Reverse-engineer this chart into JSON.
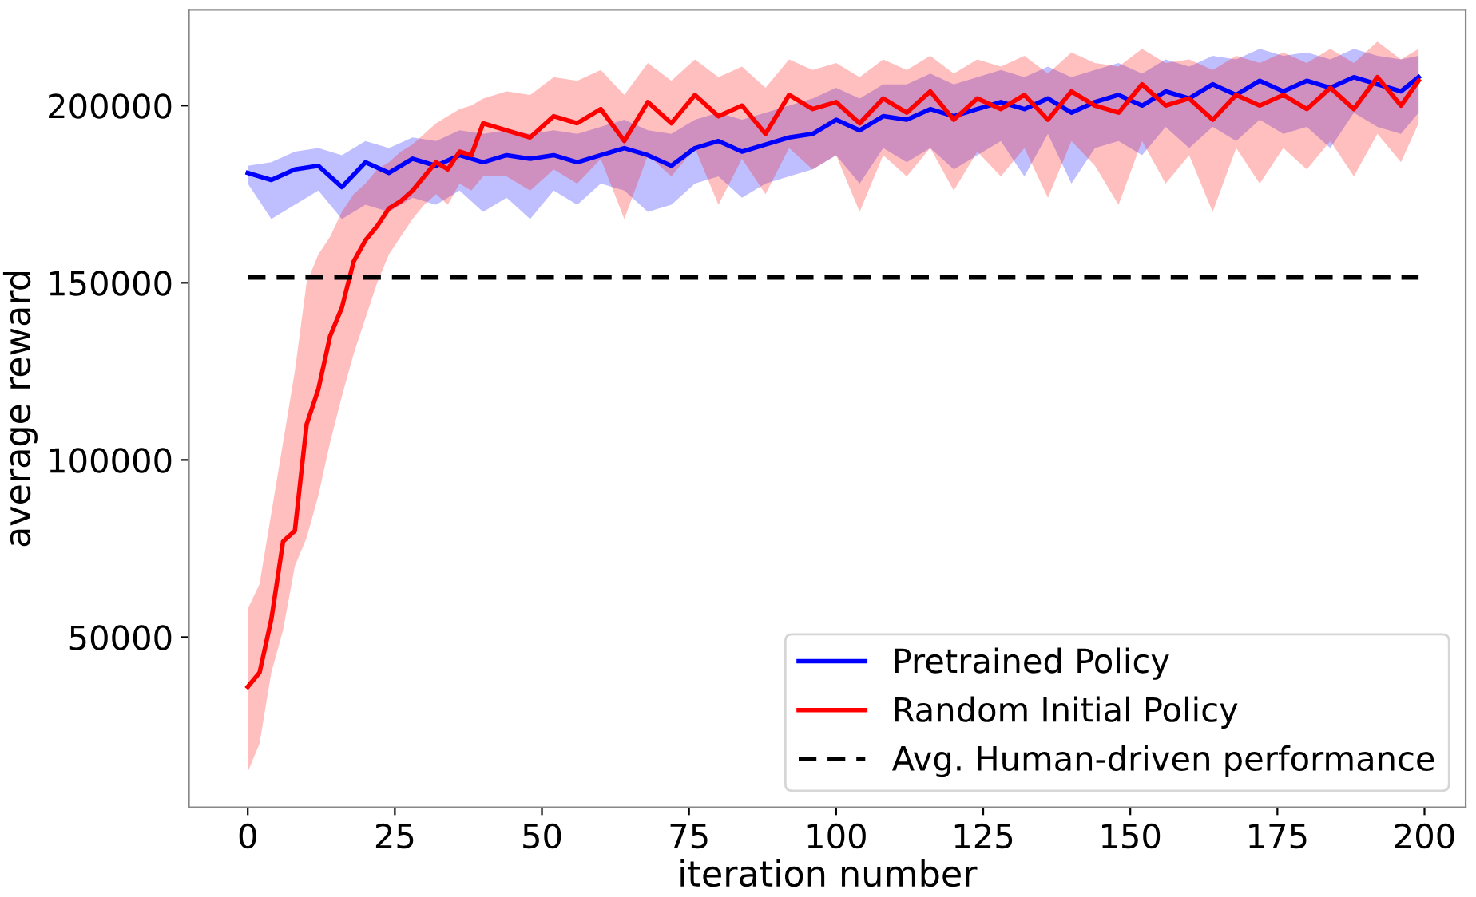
{
  "chart_data": {
    "type": "line",
    "xlabel": "iteration number",
    "ylabel": "average reward",
    "xlim": [
      -10,
      207
    ],
    "xticks": [
      0,
      25,
      50,
      75,
      100,
      125,
      150,
      175,
      200
    ],
    "ylim": [
      2000,
      227000
    ],
    "yticks": [
      50000,
      100000,
      150000,
      200000
    ],
    "grid": false,
    "legend": "bottom right",
    "marker": "none",
    "series": [
      {
        "name": "Pretrained Policy",
        "color": "#0000ff",
        "line_style": "solid",
        "x": [
          0,
          4,
          8,
          12,
          16,
          20,
          24,
          28,
          32,
          36,
          40,
          44,
          48,
          52,
          56,
          60,
          64,
          68,
          72,
          76,
          80,
          84,
          88,
          92,
          96,
          100,
          104,
          108,
          112,
          116,
          120,
          124,
          128,
          132,
          136,
          140,
          144,
          148,
          152,
          156,
          160,
          164,
          168,
          172,
          176,
          180,
          184,
          188,
          192,
          196,
          199
        ],
        "values": [
          181000,
          179000,
          182000,
          183000,
          177000,
          184000,
          181000,
          185000,
          183000,
          186000,
          184000,
          186000,
          185000,
          186000,
          184000,
          186000,
          188000,
          186000,
          183000,
          188000,
          190000,
          187000,
          189000,
          191000,
          192000,
          196000,
          193000,
          197000,
          196000,
          199000,
          197000,
          199000,
          201000,
          199000,
          202000,
          198000,
          201000,
          203000,
          200000,
          204000,
          202000,
          206000,
          203000,
          207000,
          204000,
          207000,
          205000,
          208000,
          206000,
          204000,
          208000
        ],
        "lower": [
          178000,
          168000,
          172000,
          176000,
          168000,
          172000,
          170000,
          174000,
          172000,
          176000,
          170000,
          174000,
          168000,
          176000,
          172000,
          178000,
          176000,
          170000,
          172000,
          178000,
          180000,
          174000,
          178000,
          180000,
          182000,
          186000,
          178000,
          188000,
          184000,
          188000,
          182000,
          186000,
          190000,
          180000,
          192000,
          178000,
          188000,
          190000,
          186000,
          194000,
          188000,
          194000,
          190000,
          196000,
          192000,
          194000,
          188000,
          198000,
          194000,
          192000,
          198000
        ],
        "upper": [
          183000,
          184000,
          187000,
          188000,
          186000,
          190000,
          188000,
          191000,
          190000,
          193000,
          192000,
          193000,
          192000,
          193000,
          192000,
          194000,
          196000,
          193000,
          192000,
          196000,
          198000,
          196000,
          198000,
          200000,
          202000,
          205000,
          202000,
          206000,
          206000,
          209000,
          206000,
          208000,
          210000,
          208000,
          211000,
          208000,
          210000,
          212000,
          209000,
          213000,
          211000,
          214000,
          213000,
          216000,
          214000,
          215000,
          213000,
          216000,
          214000,
          213000,
          214000
        ]
      },
      {
        "name": "Random Initial Policy",
        "color": "#ff0000",
        "line_style": "solid",
        "x": [
          0,
          2,
          4,
          6,
          8,
          10,
          12,
          14,
          16,
          18,
          20,
          22,
          24,
          26,
          28,
          30,
          32,
          34,
          36,
          38,
          40,
          44,
          48,
          52,
          56,
          60,
          64,
          68,
          72,
          76,
          80,
          84,
          88,
          92,
          96,
          100,
          104,
          108,
          112,
          116,
          120,
          124,
          128,
          132,
          136,
          140,
          144,
          148,
          152,
          156,
          160,
          164,
          168,
          172,
          176,
          180,
          184,
          188,
          192,
          196,
          199
        ],
        "values": [
          36000,
          40000,
          55000,
          77000,
          80000,
          110000,
          120000,
          135000,
          143000,
          156000,
          162000,
          166000,
          171000,
          173000,
          176000,
          180000,
          184000,
          182000,
          187000,
          186000,
          195000,
          193000,
          191000,
          197000,
          195000,
          199000,
          190000,
          201000,
          195000,
          203000,
          197000,
          200000,
          192000,
          203000,
          199000,
          201000,
          195000,
          202000,
          198000,
          204000,
          196000,
          202000,
          199000,
          203000,
          196000,
          204000,
          200000,
          198000,
          206000,
          200000,
          202000,
          196000,
          203000,
          200000,
          203000,
          199000,
          205000,
          199000,
          208000,
          200000,
          207000
        ],
        "lower": [
          12000,
          20000,
          40000,
          52000,
          70000,
          78000,
          90000,
          105000,
          118000,
          130000,
          140000,
          150000,
          158000,
          163000,
          168000,
          172000,
          175000,
          172000,
          178000,
          176000,
          180000,
          180000,
          176000,
          182000,
          178000,
          185000,
          168000,
          186000,
          180000,
          188000,
          172000,
          185000,
          175000,
          188000,
          182000,
          186000,
          170000,
          186000,
          180000,
          188000,
          176000,
          187000,
          180000,
          188000,
          174000,
          190000,
          183000,
          172000,
          190000,
          178000,
          186000,
          170000,
          188000,
          178000,
          188000,
          182000,
          190000,
          180000,
          192000,
          184000,
          195000
        ],
        "upper": [
          58000,
          65000,
          85000,
          105000,
          125000,
          150000,
          158000,
          163000,
          170000,
          175000,
          178000,
          182000,
          184000,
          187000,
          189000,
          192000,
          195000,
          197000,
          199000,
          200000,
          202000,
          204000,
          203000,
          208000,
          207000,
          210000,
          203000,
          212000,
          207000,
          213000,
          208000,
          211000,
          205000,
          213000,
          210000,
          212000,
          208000,
          213000,
          210000,
          214000,
          209000,
          213000,
          211000,
          214000,
          209000,
          215000,
          212000,
          211000,
          216000,
          212000,
          213000,
          210000,
          214000,
          212000,
          215000,
          212000,
          216000,
          212000,
          218000,
          213000,
          216000
        ]
      },
      {
        "name": "Avg. Human-driven performance",
        "color": "#000000",
        "line_style": "dashed",
        "x": [
          0,
          199
        ],
        "values": [
          151500,
          151500
        ]
      }
    ]
  }
}
